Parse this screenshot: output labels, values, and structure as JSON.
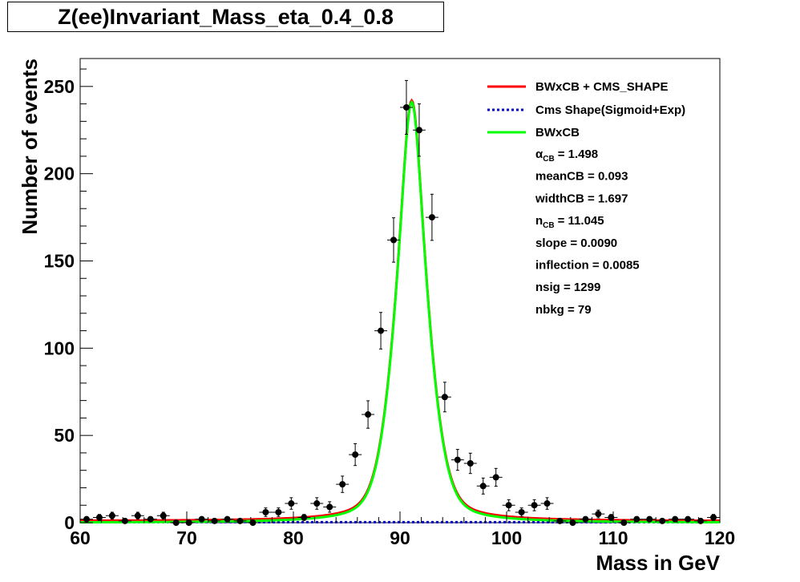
{
  "chart_data": {
    "type": "scatter",
    "title": "Z(ee)Invariant_Mass_eta_0.4_0.8",
    "xlabel": "Mass in GeV",
    "ylabel": "Number of events",
    "xlim": [
      60,
      120
    ],
    "ylim": [
      0,
      266
    ],
    "x_ticks": [
      60,
      70,
      80,
      90,
      100,
      110,
      120
    ],
    "y_ticks": [
      0,
      50,
      100,
      150,
      200,
      250
    ],
    "bin_width": 1.2,
    "grid": false,
    "legend_position": "top-right",
    "data_points": {
      "x": [
        60.6,
        61.8,
        63.0,
        64.2,
        65.4,
        66.6,
        67.8,
        69.0,
        70.2,
        71.4,
        72.6,
        73.8,
        75.0,
        76.2,
        77.4,
        78.6,
        79.8,
        81.0,
        82.2,
        83.4,
        84.6,
        85.8,
        87.0,
        88.2,
        89.4,
        90.6,
        91.8,
        93.0,
        94.2,
        95.4,
        96.6,
        97.8,
        99.0,
        100.2,
        101.4,
        102.6,
        103.8,
        105.0,
        106.2,
        107.4,
        108.6,
        109.8,
        111.0,
        112.2,
        113.4,
        114.6,
        115.8,
        117.0,
        118.2,
        119.4
      ],
      "y": [
        2,
        3,
        4,
        1,
        4,
        2,
        4,
        0,
        0,
        2,
        1,
        2,
        1,
        0,
        6,
        6,
        11,
        3,
        11,
        9,
        22,
        39,
        62,
        110,
        162,
        238,
        225,
        175,
        72,
        36,
        34,
        21,
        26,
        10,
        6,
        10,
        11,
        1,
        0,
        2,
        5,
        3,
        0,
        2,
        2,
        1,
        2,
        2,
        1,
        3
      ]
    },
    "series": [
      {
        "name": "BWxCB + CMS_SHAPE",
        "color": "#ff0000",
        "style": "solid"
      },
      {
        "name": "Cms Shape(Sigmoid+Exp)",
        "color": "#0000cc",
        "style": "dotted"
      },
      {
        "name": "BWxCB",
        "color": "#00ff00",
        "style": "solid"
      }
    ],
    "fit_params": {
      "alpha_label": "α",
      "alpha_sub": "CB",
      "alpha_value": "= 1.498",
      "mean": "meanCB = 0.093",
      "width": "widthCB = 1.697",
      "n_label": "n",
      "n_sub": "CB",
      "n_value": "= 11.045",
      "slope": "slope = 0.0090",
      "inflection": "inflection = 0.0085",
      "nsig": "nsig = 1299",
      "nbkg": "nbkg = 79"
    }
  }
}
